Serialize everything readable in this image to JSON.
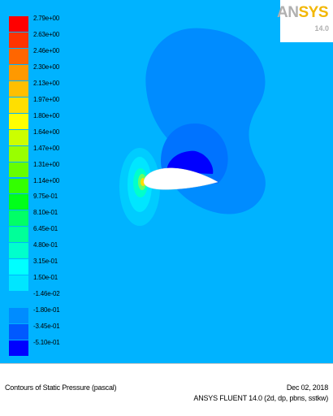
{
  "legend": {
    "levels": [
      {
        "label": "2.79e+00",
        "color": "#ff0000"
      },
      {
        "label": "2.63e+00",
        "color": "#ff3300"
      },
      {
        "label": "2.46e+00",
        "color": "#ff6600"
      },
      {
        "label": "2.30e+00",
        "color": "#ff9900"
      },
      {
        "label": "2.13e+00",
        "color": "#ffbf00"
      },
      {
        "label": "1.97e+00",
        "color": "#ffdf00"
      },
      {
        "label": "1.80e+00",
        "color": "#ffff00"
      },
      {
        "label": "1.64e+00",
        "color": "#ccff00"
      },
      {
        "label": "1.47e+00",
        "color": "#99ff00"
      },
      {
        "label": "1.31e+00",
        "color": "#66ff00"
      },
      {
        "label": "1.14e+00",
        "color": "#33ff00"
      },
      {
        "label": "9.75e-01",
        "color": "#00ff1a"
      },
      {
        "label": "8.10e-01",
        "color": "#00ff66"
      },
      {
        "label": "6.45e-01",
        "color": "#00ff99"
      },
      {
        "label": "4.80e-01",
        "color": "#00ffcc"
      },
      {
        "label": "3.15e-01",
        "color": "#00ffff"
      },
      {
        "label": "1.50e-01",
        "color": "#00e6ff"
      },
      {
        "label": "-1.46e-02",
        "color": "#00b3ff"
      },
      {
        "label": "-1.80e-01",
        "color": "#008cff"
      },
      {
        "label": "-3.45e-01",
        "color": "#0059ff"
      },
      {
        "label": "-5.10e-01",
        "color": "#0000ff"
      }
    ]
  },
  "logo": {
    "brand_a": "AN",
    "brand_b": "SYS",
    "version": "14.0"
  },
  "footer": {
    "title": "Contours of Static Pressure (pascal)",
    "date": "Dec 02, 2018",
    "solver": "ANSYS FLUENT 14.0 (2d, dp, pbns, sstkw)"
  },
  "colors": {
    "field": "#00b3ff",
    "airfoil": "#ffffff"
  }
}
